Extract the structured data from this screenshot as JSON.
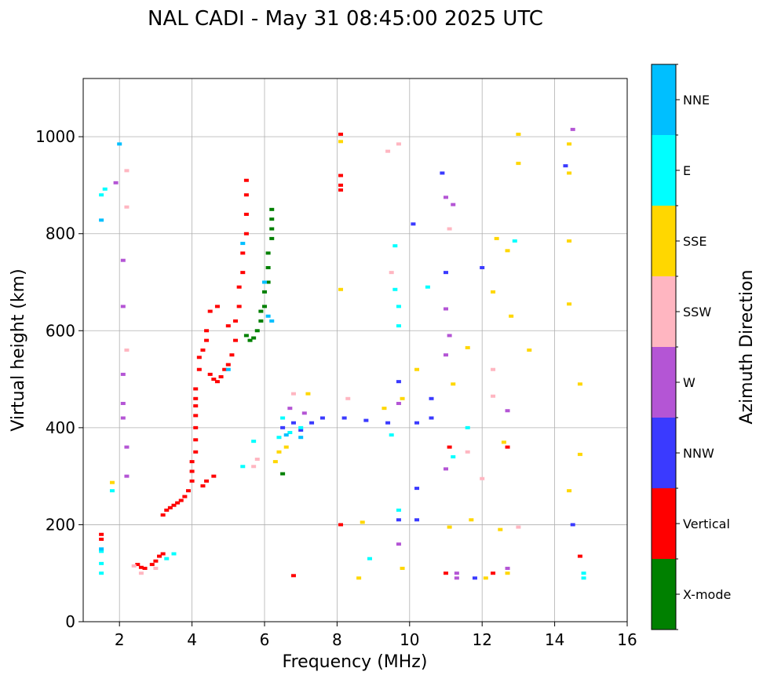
{
  "chart_data": {
    "type": "scatter",
    "title": "NAL CADI - May 31 08:45:00 2025 UTC",
    "xlabel": "Frequency (MHz)",
    "ylabel": "Virtual height (km)",
    "xlim": [
      1,
      16
    ],
    "ylim": [
      0,
      1120
    ],
    "xticks": [
      2,
      4,
      6,
      8,
      10,
      12,
      14,
      16
    ],
    "yticks": [
      0,
      200,
      400,
      600,
      800,
      1000
    ],
    "grid": true,
    "colorbar": {
      "label": "Azimuth Direction",
      "categories": [
        "X-mode",
        "Vertical",
        "NNW",
        "W",
        "SSW",
        "SSE",
        "E",
        "NNE"
      ],
      "colors": [
        "#008000",
        "#ff0000",
        "#3a3aff",
        "#b455d5",
        "#ffb6c1",
        "#ffd700",
        "#00ffff",
        "#00bfff"
      ]
    },
    "series": [
      {
        "name": "Vertical",
        "color": "#ff0000",
        "points": [
          [
            1.5,
            180
          ],
          [
            1.5,
            170
          ],
          [
            2.5,
            118
          ],
          [
            2.6,
            112
          ],
          [
            2.7,
            110
          ],
          [
            2.9,
            118
          ],
          [
            3.0,
            125
          ],
          [
            3.1,
            135
          ],
          [
            3.2,
            140
          ],
          [
            3.2,
            220
          ],
          [
            3.3,
            230
          ],
          [
            3.4,
            235
          ],
          [
            3.5,
            240
          ],
          [
            3.6,
            245
          ],
          [
            3.7,
            250
          ],
          [
            3.8,
            258
          ],
          [
            3.9,
            270
          ],
          [
            4.0,
            290
          ],
          [
            4.0,
            310
          ],
          [
            4.0,
            330
          ],
          [
            4.1,
            350
          ],
          [
            4.1,
            375
          ],
          [
            4.1,
            400
          ],
          [
            4.1,
            425
          ],
          [
            4.1,
            445
          ],
          [
            4.1,
            460
          ],
          [
            4.1,
            480
          ],
          [
            4.3,
            280
          ],
          [
            4.4,
            290
          ],
          [
            4.6,
            300
          ],
          [
            4.2,
            520
          ],
          [
            4.2,
            545
          ],
          [
            4.3,
            560
          ],
          [
            4.4,
            580
          ],
          [
            4.4,
            600
          ],
          [
            4.5,
            510
          ],
          [
            4.6,
            500
          ],
          [
            4.7,
            495
          ],
          [
            4.8,
            505
          ],
          [
            4.9,
            520
          ],
          [
            5.0,
            530
          ],
          [
            5.1,
            550
          ],
          [
            5.2,
            580
          ],
          [
            5.2,
            620
          ],
          [
            5.3,
            650
          ],
          [
            5.3,
            690
          ],
          [
            5.4,
            720
          ],
          [
            5.4,
            760
          ],
          [
            5.5,
            800
          ],
          [
            5.5,
            840
          ],
          [
            5.5,
            880
          ],
          [
            5.5,
            910
          ],
          [
            4.5,
            640
          ],
          [
            4.7,
            650
          ],
          [
            5.0,
            610
          ],
          [
            8.1,
            890
          ],
          [
            8.1,
            900
          ],
          [
            8.1,
            920
          ],
          [
            8.1,
            1005
          ],
          [
            8.1,
            200
          ],
          [
            11.1,
            360
          ],
          [
            12.7,
            360
          ],
          [
            14.7,
            135
          ],
          [
            12.3,
            100
          ],
          [
            11.0,
            100
          ],
          [
            6.8,
            95
          ]
        ]
      },
      {
        "name": "X-mode",
        "color": "#008000",
        "points": [
          [
            5.5,
            590
          ],
          [
            5.6,
            580
          ],
          [
            5.7,
            585
          ],
          [
            5.8,
            600
          ],
          [
            5.9,
            620
          ],
          [
            6.0,
            650
          ],
          [
            6.0,
            680
          ],
          [
            6.1,
            700
          ],
          [
            6.1,
            730
          ],
          [
            6.1,
            760
          ],
          [
            6.2,
            790
          ],
          [
            6.2,
            810
          ],
          [
            6.2,
            830
          ],
          [
            6.2,
            850
          ],
          [
            5.9,
            640
          ],
          [
            6.5,
            305
          ]
        ]
      },
      {
        "name": "NNW",
        "color": "#3a3aff",
        "points": [
          [
            6.5,
            400
          ],
          [
            6.8,
            410
          ],
          [
            7.0,
            395
          ],
          [
            7.3,
            410
          ],
          [
            7.6,
            420
          ],
          [
            8.2,
            420
          ],
          [
            8.8,
            415
          ],
          [
            9.4,
            410
          ],
          [
            9.7,
            495
          ],
          [
            10.2,
            410
          ],
          [
            10.6,
            460
          ],
          [
            10.6,
            420
          ],
          [
            10.2,
            275
          ],
          [
            9.7,
            210
          ],
          [
            10.2,
            210
          ],
          [
            10.1,
            820
          ],
          [
            10.9,
            925
          ],
          [
            11.0,
            720
          ],
          [
            12.0,
            730
          ],
          [
            14.3,
            940
          ],
          [
            11.8,
            90
          ],
          [
            14.5,
            200
          ]
        ]
      },
      {
        "name": "W",
        "color": "#b455d5",
        "points": [
          [
            1.9,
            905
          ],
          [
            2.1,
            745
          ],
          [
            2.1,
            650
          ],
          [
            2.1,
            510
          ],
          [
            2.1,
            450
          ],
          [
            2.1,
            420
          ],
          [
            2.2,
            360
          ],
          [
            2.2,
            300
          ],
          [
            6.7,
            440
          ],
          [
            7.1,
            430
          ],
          [
            11.0,
            875
          ],
          [
            11.2,
            860
          ],
          [
            11.0,
            645
          ],
          [
            11.0,
            550
          ],
          [
            11.1,
            590
          ],
          [
            11.0,
            315
          ],
          [
            11.3,
            100
          ],
          [
            11.3,
            90
          ],
          [
            12.7,
            110
          ],
          [
            14.5,
            1015
          ],
          [
            12.7,
            435
          ],
          [
            9.7,
            450
          ],
          [
            9.7,
            160
          ]
        ]
      },
      {
        "name": "SSW",
        "color": "#ffb6c1",
        "points": [
          [
            2.2,
            930
          ],
          [
            2.2,
            855
          ],
          [
            2.2,
            560
          ],
          [
            5.7,
            320
          ],
          [
            5.8,
            335
          ],
          [
            6.8,
            470
          ],
          [
            8.3,
            460
          ],
          [
            9.4,
            970
          ],
          [
            9.7,
            985
          ],
          [
            9.5,
            720
          ],
          [
            11.1,
            810
          ],
          [
            11.6,
            350
          ],
          [
            12.0,
            295
          ],
          [
            12.3,
            465
          ],
          [
            12.3,
            520
          ],
          [
            13.0,
            195
          ],
          [
            2.6,
            100
          ],
          [
            2.4,
            115
          ],
          [
            3.0,
            110
          ]
        ]
      },
      {
        "name": "SSE",
        "color": "#ffd700",
        "points": [
          [
            6.3,
            330
          ],
          [
            6.4,
            350
          ],
          [
            6.6,
            360
          ],
          [
            7.2,
            470
          ],
          [
            8.1,
            990
          ],
          [
            8.1,
            685
          ],
          [
            8.7,
            205
          ],
          [
            8.6,
            90
          ],
          [
            9.3,
            440
          ],
          [
            9.8,
            460
          ],
          [
            9.8,
            110
          ],
          [
            10.2,
            520
          ],
          [
            11.2,
            490
          ],
          [
            11.6,
            565
          ],
          [
            11.7,
            210
          ],
          [
            11.1,
            195
          ],
          [
            12.3,
            680
          ],
          [
            12.4,
            790
          ],
          [
            12.5,
            190
          ],
          [
            12.7,
            765
          ],
          [
            12.8,
            630
          ],
          [
            13.0,
            1005
          ],
          [
            13.0,
            945
          ],
          [
            13.3,
            560
          ],
          [
            14.4,
            985
          ],
          [
            14.4,
            925
          ],
          [
            14.4,
            785
          ],
          [
            14.4,
            655
          ],
          [
            14.4,
            270
          ],
          [
            14.7,
            490
          ],
          [
            14.7,
            345
          ],
          [
            12.6,
            370
          ],
          [
            12.1,
            90
          ],
          [
            12.7,
            100
          ],
          [
            1.8,
            287
          ]
        ]
      },
      {
        "name": "E",
        "color": "#00ffff",
        "points": [
          [
            1.5,
            880
          ],
          [
            1.6,
            892
          ],
          [
            1.5,
            145
          ],
          [
            1.5,
            120
          ],
          [
            1.5,
            100
          ],
          [
            1.8,
            270
          ],
          [
            3.3,
            130
          ],
          [
            3.5,
            140
          ],
          [
            6.4,
            380
          ],
          [
            6.5,
            420
          ],
          [
            6.7,
            390
          ],
          [
            7.0,
            400
          ],
          [
            9.6,
            685
          ],
          [
            9.7,
            610
          ],
          [
            9.7,
            650
          ],
          [
            9.6,
            775
          ],
          [
            9.7,
            230
          ],
          [
            10.5,
            690
          ],
          [
            11.2,
            340
          ],
          [
            11.6,
            400
          ],
          [
            12.9,
            785
          ],
          [
            14.8,
            90
          ],
          [
            14.8,
            100
          ],
          [
            8.9,
            130
          ],
          [
            9.5,
            385
          ],
          [
            5.7,
            372
          ],
          [
            5.4,
            320
          ]
        ]
      },
      {
        "name": "NNE",
        "color": "#00bfff",
        "points": [
          [
            1.5,
            828
          ],
          [
            1.5,
            150
          ],
          [
            2.0,
            985
          ],
          [
            6.0,
            700
          ],
          [
            6.1,
            630
          ],
          [
            5.0,
            520
          ],
          [
            5.4,
            780
          ],
          [
            6.2,
            620
          ],
          [
            6.6,
            385
          ],
          [
            7.0,
            380
          ]
        ]
      }
    ]
  }
}
